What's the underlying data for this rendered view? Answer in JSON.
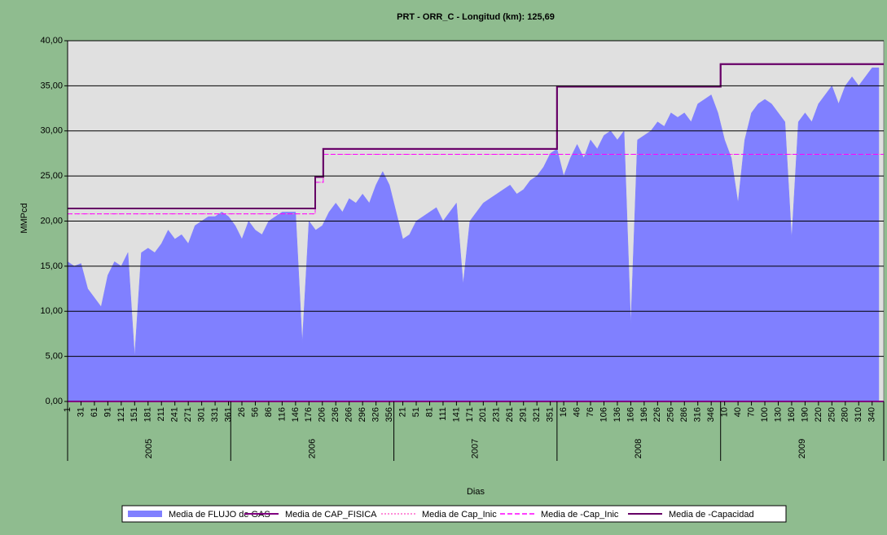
{
  "chart_data": {
    "type": "area",
    "title": "PRT - ORR_C - Longitud (km): 125,69",
    "y_label": "MMPcd",
    "x_label": "Dias",
    "xlim": [
      0,
      1826
    ],
    "ylim": [
      0,
      40
    ],
    "yticks": [
      {
        "value": 0,
        "label": "0,00"
      },
      {
        "value": 5,
        "label": "5,00"
      },
      {
        "value": 10,
        "label": "10,00"
      },
      {
        "value": 15,
        "label": "15,00"
      },
      {
        "value": 20,
        "label": "20,00"
      },
      {
        "value": 25,
        "label": "25,00"
      },
      {
        "value": 30,
        "label": "30,00"
      },
      {
        "value": 35,
        "label": "35,00"
      },
      {
        "value": 40,
        "label": "40,00"
      }
    ],
    "grid": true,
    "xticks": [
      {
        "value": 0,
        "label": "1"
      },
      {
        "value": 30,
        "label": "31"
      },
      {
        "value": 60,
        "label": "61"
      },
      {
        "value": 90,
        "label": "91"
      },
      {
        "value": 120,
        "label": "121"
      },
      {
        "value": 150,
        "label": "151"
      },
      {
        "value": 180,
        "label": "181"
      },
      {
        "value": 210,
        "label": "211"
      },
      {
        "value": 240,
        "label": "241"
      },
      {
        "value": 270,
        "label": "271"
      },
      {
        "value": 300,
        "label": "301"
      },
      {
        "value": 330,
        "label": "331"
      },
      {
        "value": 360,
        "label": "361"
      },
      {
        "value": 390,
        "label": "26"
      },
      {
        "value": 420,
        "label": "56"
      },
      {
        "value": 450,
        "label": "86"
      },
      {
        "value": 480,
        "label": "116"
      },
      {
        "value": 510,
        "label": "146"
      },
      {
        "value": 540,
        "label": "176"
      },
      {
        "value": 570,
        "label": "206"
      },
      {
        "value": 600,
        "label": "236"
      },
      {
        "value": 630,
        "label": "266"
      },
      {
        "value": 660,
        "label": "296"
      },
      {
        "value": 690,
        "label": "326"
      },
      {
        "value": 720,
        "label": "356"
      },
      {
        "value": 750,
        "label": "21"
      },
      {
        "value": 780,
        "label": "51"
      },
      {
        "value": 810,
        "label": "81"
      },
      {
        "value": 840,
        "label": "111"
      },
      {
        "value": 870,
        "label": "141"
      },
      {
        "value": 900,
        "label": "171"
      },
      {
        "value": 930,
        "label": "201"
      },
      {
        "value": 960,
        "label": "231"
      },
      {
        "value": 990,
        "label": "261"
      },
      {
        "value": 1020,
        "label": "291"
      },
      {
        "value": 1050,
        "label": "321"
      },
      {
        "value": 1080,
        "label": "351"
      },
      {
        "value": 1110,
        "label": "16"
      },
      {
        "value": 1140,
        "label": "46"
      },
      {
        "value": 1170,
        "label": "76"
      },
      {
        "value": 1200,
        "label": "106"
      },
      {
        "value": 1230,
        "label": "136"
      },
      {
        "value": 1260,
        "label": "166"
      },
      {
        "value": 1290,
        "label": "196"
      },
      {
        "value": 1320,
        "label": "226"
      },
      {
        "value": 1350,
        "label": "256"
      },
      {
        "value": 1380,
        "label": "286"
      },
      {
        "value": 1410,
        "label": "316"
      },
      {
        "value": 1440,
        "label": "346"
      },
      {
        "value": 1470,
        "label": "10"
      },
      {
        "value": 1500,
        "label": "40"
      },
      {
        "value": 1530,
        "label": "70"
      },
      {
        "value": 1560,
        "label": "100"
      },
      {
        "value": 1590,
        "label": "130"
      },
      {
        "value": 1620,
        "label": "160"
      },
      {
        "value": 1650,
        "label": "190"
      },
      {
        "value": 1680,
        "label": "220"
      },
      {
        "value": 1710,
        "label": "250"
      },
      {
        "value": 1740,
        "label": "280"
      },
      {
        "value": 1770,
        "label": "310"
      },
      {
        "value": 1800,
        "label": "340"
      }
    ],
    "years": [
      {
        "label": "2005",
        "start": 0,
        "end": 365
      },
      {
        "label": "2006",
        "start": 365,
        "end": 730
      },
      {
        "label": "2007",
        "start": 730,
        "end": 1095
      },
      {
        "label": "2008",
        "start": 1095,
        "end": 1461
      },
      {
        "label": "2009",
        "start": 1461,
        "end": 1826
      }
    ],
    "series": [
      {
        "name": "Media de FLUJO de GAS",
        "color": "#8080ff",
        "style": "area",
        "x": [
          0,
          15,
          30,
          45,
          60,
          75,
          90,
          105,
          120,
          135,
          150,
          165,
          180,
          195,
          210,
          225,
          240,
          255,
          270,
          285,
          300,
          315,
          330,
          345,
          360,
          375,
          390,
          405,
          420,
          435,
          450,
          465,
          480,
          495,
          510,
          525,
          540,
          555,
          570,
          585,
          600,
          615,
          630,
          645,
          660,
          675,
          690,
          705,
          720,
          735,
          750,
          765,
          780,
          795,
          810,
          825,
          840,
          855,
          870,
          885,
          900,
          915,
          930,
          945,
          960,
          975,
          990,
          1005,
          1020,
          1035,
          1050,
          1065,
          1080,
          1095,
          1110,
          1125,
          1140,
          1155,
          1170,
          1185,
          1200,
          1215,
          1230,
          1245,
          1260,
          1275,
          1290,
          1305,
          1320,
          1335,
          1350,
          1365,
          1380,
          1395,
          1410,
          1425,
          1440,
          1455,
          1470,
          1485,
          1500,
          1515,
          1530,
          1545,
          1560,
          1575,
          1590,
          1605,
          1620,
          1635,
          1650,
          1665,
          1680,
          1695,
          1710,
          1725,
          1740,
          1755,
          1770,
          1785,
          1800,
          1815
        ],
        "values": [
          15.5,
          15,
          15.3,
          12.5,
          11.5,
          10.5,
          14,
          15.5,
          15,
          16.5,
          5,
          16.5,
          17,
          16.5,
          17.5,
          19,
          18,
          18.5,
          17.5,
          19.5,
          20,
          20.5,
          20.5,
          21,
          20.5,
          19.5,
          18,
          20,
          19,
          18.5,
          20,
          20.5,
          21,
          21,
          21,
          6.5,
          20,
          19,
          19.5,
          21,
          22,
          21,
          22.5,
          22,
          23,
          22,
          24,
          25.5,
          24,
          21,
          18,
          18.5,
          20,
          20.5,
          21,
          21.5,
          20,
          21,
          22,
          13,
          20,
          21,
          22,
          22.5,
          23,
          23.5,
          24,
          23,
          23.5,
          24.5,
          25,
          26,
          27.5,
          28,
          25,
          27,
          28.5,
          27,
          29,
          28,
          29.5,
          30,
          29,
          30,
          8.5,
          29,
          29.5,
          30,
          31,
          30.5,
          32,
          31.5,
          32,
          31,
          33,
          33.5,
          34,
          32,
          29,
          27,
          22,
          29,
          32,
          33,
          33.5,
          33,
          32,
          31,
          18,
          31,
          32,
          31,
          33,
          34,
          35,
          33,
          35,
          36,
          35,
          36,
          37,
          37
        ]
      },
      {
        "name": "Media de CAP_FISICA",
        "color": "#800080",
        "style": "solid",
        "x": [
          0,
          554,
          554,
          572,
          572,
          1095,
          1095,
          1461,
          1461,
          1826
        ],
        "values": [
          21.4,
          21.4,
          24.9,
          24.9,
          28,
          28,
          34.9,
          34.9,
          37.4,
          37.4
        ]
      },
      {
        "name": "Media de Cap_Inic",
        "color": "#ff66cc",
        "style": "dotted",
        "x": [
          0,
          554,
          554,
          572,
          572,
          1826
        ],
        "values": [
          20.8,
          20.8,
          24.3,
          24.3,
          27.4,
          27.4
        ]
      },
      {
        "name": "Media de -Cap_Inic",
        "color": "#ff00ff",
        "style": "dashed",
        "x": [
          0,
          554,
          554,
          572,
          572,
          1826
        ],
        "values": [
          20.8,
          20.8,
          24.3,
          24.3,
          27.4,
          27.4
        ]
      },
      {
        "name": "Media de -Capacidad",
        "color": "#660066",
        "style": "solid",
        "x": [
          0,
          554,
          554,
          572,
          572,
          1095,
          1095,
          1461,
          1461,
          1826
        ],
        "values": [
          21.4,
          21.4,
          24.9,
          24.9,
          28,
          28,
          34.9,
          34.9,
          37.4,
          37.4
        ]
      }
    ]
  }
}
